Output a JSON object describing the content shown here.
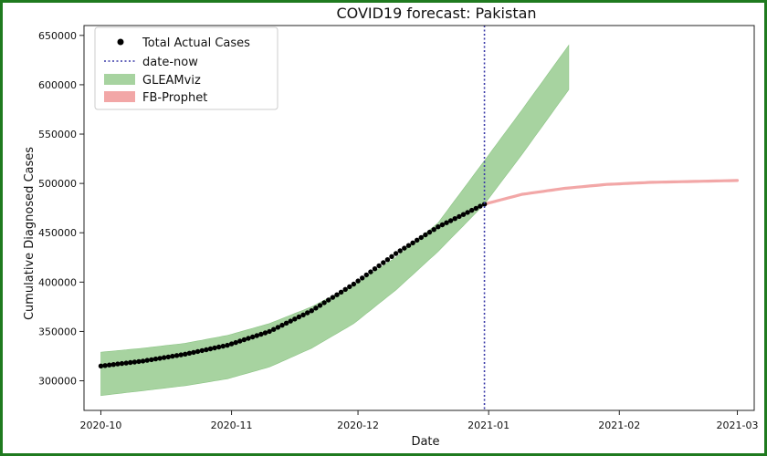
{
  "chart_data": {
    "type": "line",
    "title": "COVID19 forecast: Pakistan",
    "xlabel": "Date",
    "ylabel": "Cumulative Diagnosed Cases",
    "x_ticks": [
      "2020-10",
      "2020-11",
      "2020-12",
      "2021-01",
      "2021-02",
      "2021-03"
    ],
    "x_tick_days": [
      0,
      31,
      61,
      92,
      123,
      151
    ],
    "xlim_days": [
      -4,
      155
    ],
    "ylim": [
      270000,
      660000
    ],
    "y_ticks": [
      300000,
      350000,
      400000,
      450000,
      500000,
      550000,
      600000,
      650000
    ],
    "y_tick_labels": [
      "300000",
      "350000",
      "400000",
      "450000",
      "500000",
      "550000",
      "600000",
      "650000"
    ],
    "date_now_day": 91,
    "legend": {
      "position": "top-left",
      "entries": [
        "Total Actual Cases",
        "date-now",
        "GLEAMviz",
        "FB-Prophet"
      ]
    },
    "colors": {
      "actual": "#000000",
      "date_now": "#3a3aa8",
      "gleamviz_fill": "#a7d3a0",
      "gleamviz_edge": "#8cc485",
      "prophet": "#f2a7a7",
      "frame": "#1f7a1f"
    },
    "series": [
      {
        "name": "Total Actual Cases",
        "style": "markers",
        "x_days": [
          0,
          10,
          20,
          30,
          40,
          50,
          60,
          70,
          80,
          91
        ],
        "values": [
          315000,
          320000,
          327000,
          336000,
          350000,
          371000,
          398000,
          429000,
          456000,
          479000
        ]
      },
      {
        "name": "GLEAMviz",
        "style": "band",
        "x_days": [
          0,
          10,
          20,
          30,
          40,
          50,
          60,
          70,
          80,
          91,
          100,
          111
        ],
        "lower": [
          285000,
          290000,
          295000,
          302000,
          314000,
          333000,
          358000,
          392000,
          431000,
          479000,
          530000,
          595000
        ],
        "upper": [
          329000,
          333000,
          338000,
          346000,
          358000,
          375000,
          397000,
          425000,
          460000,
          523000,
          575000,
          640000
        ]
      },
      {
        "name": "FB-Prophet",
        "style": "line",
        "x_days": [
          91,
          100,
          110,
          120,
          130,
          140,
          151
        ],
        "values": [
          479000,
          489000,
          495000,
          499000,
          501000,
          502000,
          503000
        ]
      }
    ]
  }
}
